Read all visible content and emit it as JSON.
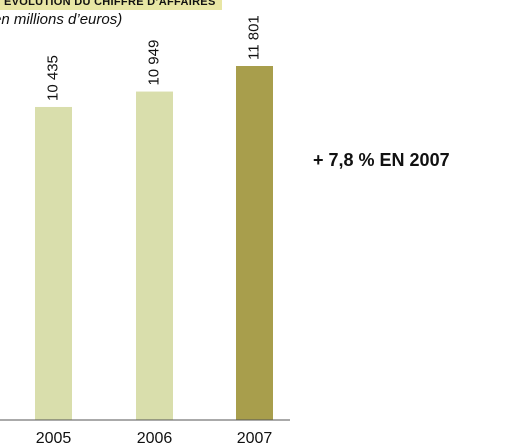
{
  "chart_data": {
    "type": "bar",
    "title": "ÉVOLUTION DU CHIFFRE D’AFFAIRES",
    "subtitle": "(en millions d’euros)",
    "categories": [
      "2005",
      "2006",
      "2007"
    ],
    "values": [
      10435,
      10949,
      11801
    ],
    "value_labels": [
      "10 435",
      "10 949",
      "11 801"
    ],
    "bar_colors": [
      "#d9deac",
      "#d9deac",
      "#a89e4c"
    ],
    "axis_color": "#555555",
    "ylim": [
      0,
      11801
    ],
    "grid": false,
    "legend": "none",
    "annotation": "+ 7,8 % EN 2007"
  }
}
